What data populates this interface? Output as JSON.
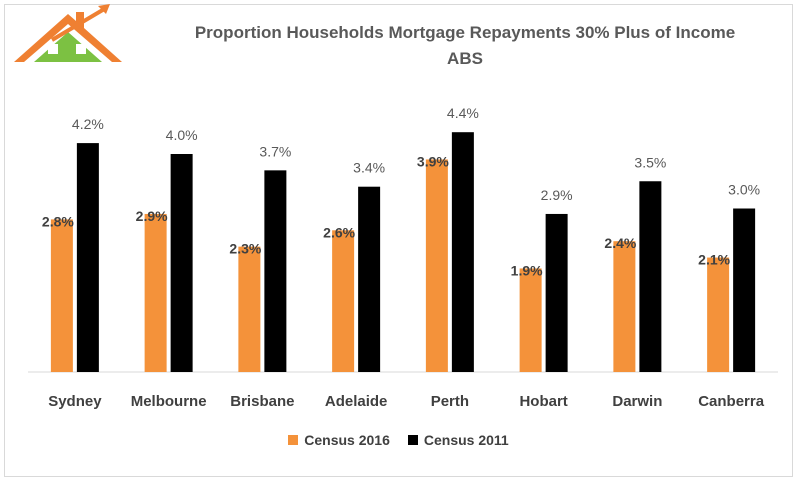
{
  "colors": {
    "census_2016": "#f4923a",
    "census_2011": "#000000",
    "logo_roof": "#ef8032",
    "logo_house": "#7cc142",
    "logo_arrow": "#ef8032"
  },
  "chart_data": {
    "type": "bar",
    "title": "Proportion Households Mortgage Repayments 30% Plus of Income",
    "subtitle": "ABS",
    "categories": [
      "Sydney",
      "Melbourne",
      "Brisbane",
      "Adelaide",
      "Perth",
      "Hobart",
      "Darwin",
      "Canberra"
    ],
    "series": [
      {
        "name": "Census 2016",
        "values": [
          2.8,
          2.9,
          2.3,
          2.6,
          3.9,
          1.9,
          2.4,
          2.1
        ],
        "labels": [
          "2.8%",
          "2.9%",
          "2.3%",
          "2.6%",
          "3.9%",
          "1.9%",
          "2.4%",
          "2.1%"
        ]
      },
      {
        "name": "Census 2011",
        "values": [
          4.2,
          4.0,
          3.7,
          3.4,
          4.4,
          2.9,
          3.5,
          3.0
        ],
        "labels": [
          "4.2%",
          "4.0%",
          "3.7%",
          "3.4%",
          "4.4%",
          "2.9%",
          "3.5%",
          "3.0%"
        ]
      }
    ],
    "ylim": [
      0,
      5
    ],
    "grid": false,
    "legend_position": "bottom"
  }
}
